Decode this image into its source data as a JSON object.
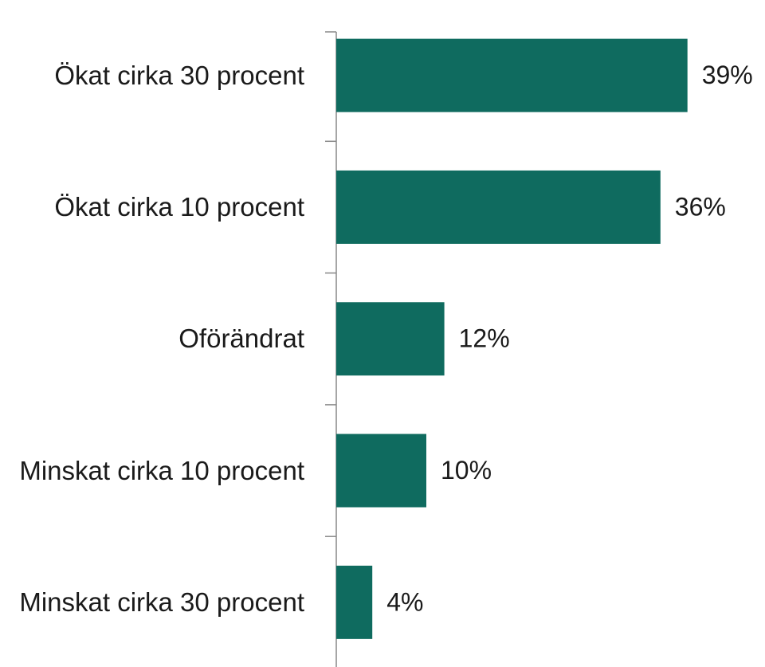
{
  "chart_data": {
    "type": "barh",
    "categories": [
      "Ökat cirka 30 procent",
      "Ökat cirka 10 procent",
      "Oförändrat",
      "Minskat cirka 10 procent",
      "Minskat cirka 30 procent"
    ],
    "values": [
      39,
      36,
      12,
      10,
      4
    ],
    "value_labels": [
      "39%",
      "36%",
      "12%",
      "10%",
      "4%"
    ],
    "color": "#0f6b5f"
  }
}
